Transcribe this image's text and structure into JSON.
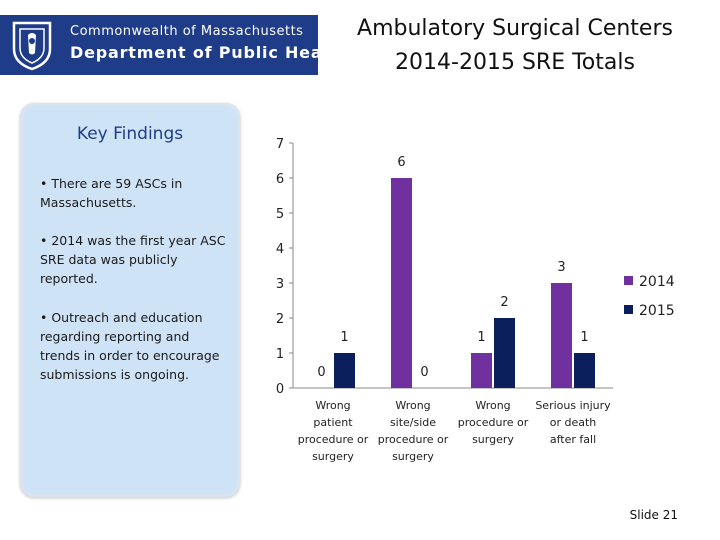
{
  "header": {
    "logo_line1": "Commonwealth of Massachusetts",
    "logo_line2": "Department of Public Health",
    "title_line1": "Ambulatory Surgical Centers",
    "title_line2": "2014-2015 SRE Totals"
  },
  "panel": {
    "title": "Key Findings",
    "bullets": [
      "• There are 59 ASCs in Massachusetts.",
      "• 2014 was the first year ASC SRE data was publicly reported.",
      "• Outreach and education regarding reporting and trends in order to encourage submissions is ongoing."
    ]
  },
  "chart_data": {
    "type": "bar",
    "title": "",
    "xlabel": "",
    "ylabel": "",
    "ylim": [
      0,
      7
    ],
    "yticks": [
      0,
      1,
      2,
      3,
      4,
      5,
      6,
      7
    ],
    "grid": false,
    "legend_position": "right",
    "categories": [
      [
        "Wrong",
        "patient",
        "procedure or",
        "surgery"
      ],
      [
        "Wrong",
        "site/side",
        "procedure or",
        "surgery"
      ],
      [
        "Wrong",
        "procedure or",
        "surgery"
      ],
      [
        "Serious injury",
        "or death",
        "after fall"
      ]
    ],
    "series": [
      {
        "name": "2014",
        "color": "#7030a0",
        "values": [
          0,
          6,
          1,
          3
        ]
      },
      {
        "name": "2015",
        "color": "#0b1f5c",
        "values": [
          1,
          0,
          2,
          1
        ]
      }
    ]
  },
  "footer": {
    "slide_label": "Slide 21"
  }
}
